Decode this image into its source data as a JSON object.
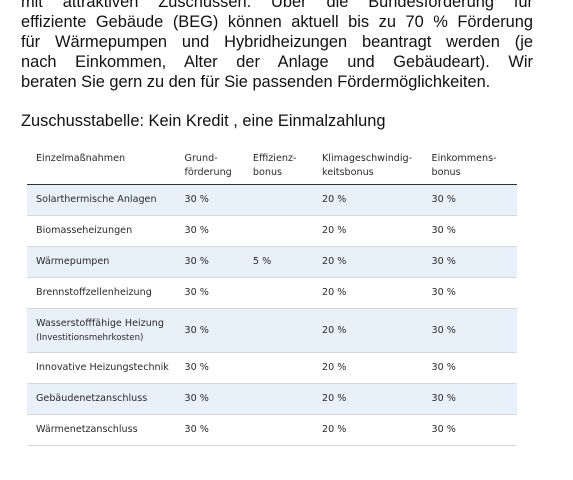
{
  "intro": {
    "lines": [
      "mit attraktiven Zuschüssen. Über die Bundesförderung für",
      "effiziente Gebäude (BEG) können aktuell bis zu 70 % Förderung",
      "für Wärmepumpen und Hybridheizungen beantragt werden (je",
      "nach Einkommen, Alter der Anlage und Gebäudeart). Wir",
      "beraten Sie gern zu den für Sie passenden Fördermöglichkeiten."
    ]
  },
  "caption": "Zuschusstabelle: Kein Kredit , eine Einmalzahlung",
  "table": {
    "headers": [
      {
        "line1": "Einzelmaßnahmen",
        "line2": ""
      },
      {
        "line1": "Grund-",
        "line2": "förderung"
      },
      {
        "line1": "Effizienz-",
        "line2": "bonus"
      },
      {
        "line1": "Klimageschwindig-",
        "line2": "keitsbonus"
      },
      {
        "line1": "Einkommens-",
        "line2": "bonus"
      }
    ],
    "rows": [
      {
        "name": "Solarthermische Anlagen",
        "sub": "",
        "grund": "30 %",
        "effizienz": "",
        "klima": "20 %",
        "einkommen": "30 %"
      },
      {
        "name": "Biomasseheizungen",
        "sub": "",
        "grund": "30 %",
        "effizienz": "",
        "klima": "20 %",
        "einkommen": "30 %"
      },
      {
        "name": "Wärmepumpen",
        "sub": "",
        "grund": "30 %",
        "effizienz": "5 %",
        "klima": "20 %",
        "einkommen": "30 %"
      },
      {
        "name": "Brennstoffzellenheizung",
        "sub": "",
        "grund": "30 %",
        "effizienz": "",
        "klima": "20 %",
        "einkommen": "30 %"
      },
      {
        "name": "Wasserstofffähige Heizung",
        "sub": "(Investitionsmehrkosten)",
        "grund": "30 %",
        "effizienz": "",
        "klima": "20 %",
        "einkommen": "30 %"
      },
      {
        "name": "Innovative Heizungstechnik",
        "sub": "",
        "grund": "30 %",
        "effizienz": "",
        "klima": "20 %",
        "einkommen": "30 %"
      },
      {
        "name": "Gebäudenetzanschluss",
        "sub": "",
        "grund": "30 %",
        "effizienz": "",
        "klima": "20 %",
        "einkommen": "30 %"
      },
      {
        "name": "Wärmenetzanschluss",
        "sub": "",
        "grund": "30 %",
        "effizienz": "",
        "klima": "20 %",
        "einkommen": "30 %"
      }
    ]
  }
}
